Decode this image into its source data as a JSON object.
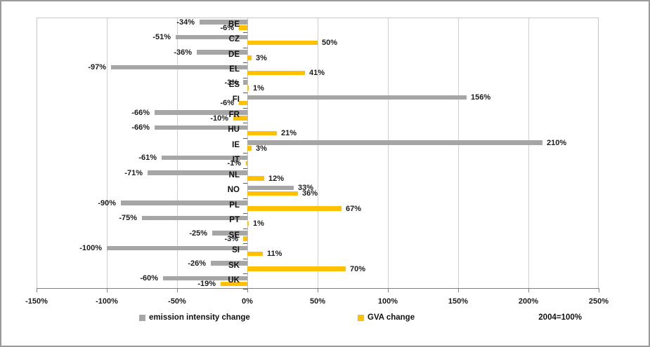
{
  "chart_data": {
    "type": "bar",
    "orientation": "horizontal",
    "categories": [
      "BE",
      "CZ",
      "DE",
      "EL",
      "ES",
      "FI",
      "FR",
      "HU",
      "IE",
      "IT",
      "NL",
      "NO",
      "PL",
      "PT",
      "SE",
      "SI",
      "SK",
      "UK"
    ],
    "series": [
      {
        "name": "emission intensity change",
        "color": "#A6A6A6",
        "values": [
          -34,
          -51,
          -36,
          -97,
          -3,
          156,
          -66,
          -66,
          210,
          -61,
          -71,
          33,
          -90,
          -75,
          -25,
          -100,
          -26,
          -60
        ]
      },
      {
        "name": "GVA change",
        "color": "#FFC000",
        "values": [
          -6,
          50,
          3,
          41,
          1,
          -6,
          -10,
          21,
          3,
          -1,
          12,
          36,
          67,
          1,
          -3,
          11,
          70,
          -19
        ]
      }
    ],
    "data_label_format": "{v}%",
    "xlim": [
      -150,
      250
    ],
    "x_ticks": [
      {
        "value": -150,
        "label": "-150%"
      },
      {
        "value": -100,
        "label": "-100%"
      },
      {
        "value": -50,
        "label": "-50%"
      },
      {
        "value": 0,
        "label": "0%"
      },
      {
        "value": 50,
        "label": "50%"
      },
      {
        "value": 100,
        "label": "100%"
      },
      {
        "value": 150,
        "label": "150%"
      },
      {
        "value": 200,
        "label": "200%"
      },
      {
        "value": 250,
        "label": "250%"
      }
    ],
    "grid": true,
    "legend_position": "bottom",
    "note": "2004=100%",
    "style": {
      "grid_color": "#d0d0d0",
      "zero_axis_color": "#c2c2c2",
      "value_axis_color": "#808080",
      "plot_border_color": "#c6c6c6",
      "chart_border_color": "#9a9a9a",
      "text_color": "#1b1b1b"
    }
  }
}
